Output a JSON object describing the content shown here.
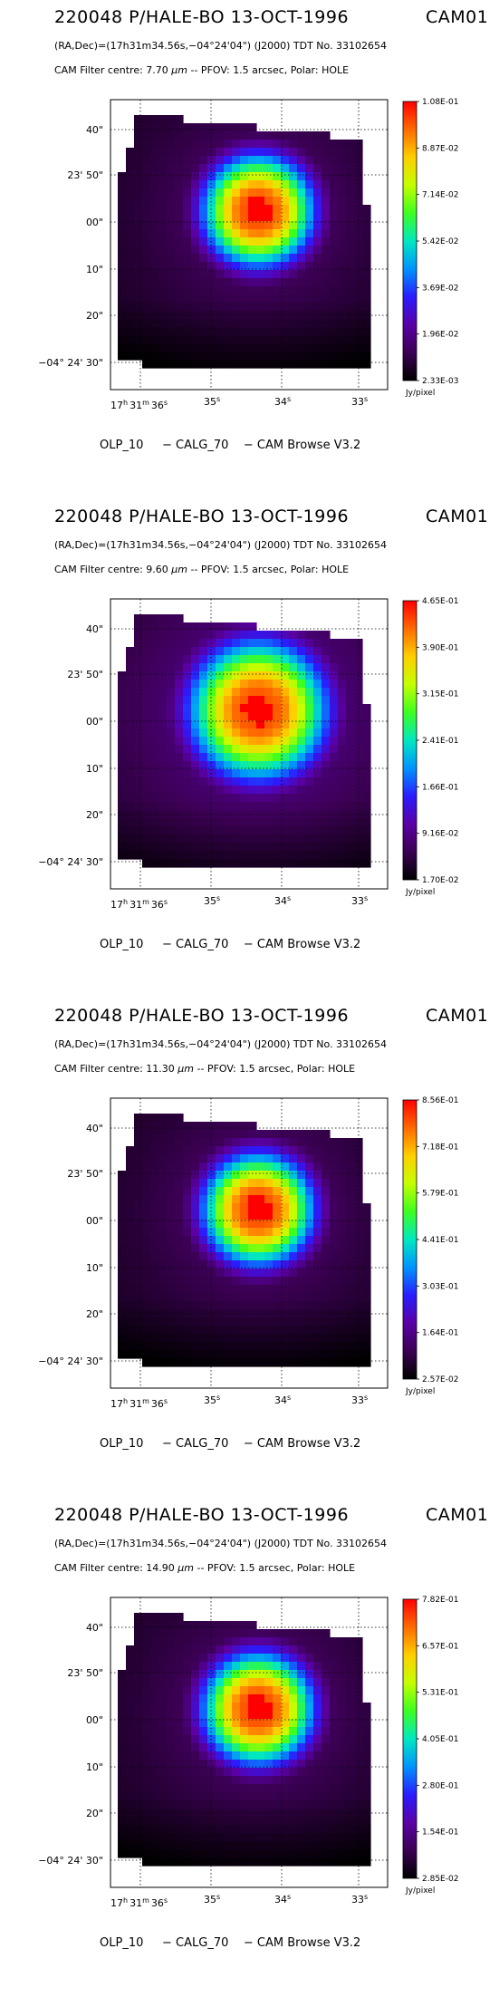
{
  "panels": [
    {
      "title": "220048 P/HALE-BO 13-OCT-1996",
      "cam_id": "CAM01",
      "coordinates": "(RA,Dec)=(17h31m34.56s,−04°24'04\") (J2000) TDT No. 33102654",
      "filter_prefix": "CAM  Filter  centre:  7.70",
      "filter_unit": "µm",
      "filter_suffix": " --    PFOV:  1.5 arcsec, Polar: HOLE",
      "colorbar_ticks": [
        "1.08E-01",
        "8.87E-02",
        "7.14E-02",
        "5.42E-02",
        "3.69E-02",
        "1.96E-02",
        "2.33E-03"
      ],
      "colorbar_unit": "Jy/pixel",
      "footer": "OLP_10     − CALG_70    − CAM Browse V3.2"
    },
    {
      "title": "220048 P/HALE-BO 13-OCT-1996",
      "cam_id": "CAM01",
      "coordinates": "(RA,Dec)=(17h31m34.56s,−04°24'04\") (J2000) TDT No. 33102654",
      "filter_prefix": "CAM  Filter  centre:  9.60",
      "filter_unit": "µm",
      "filter_suffix": " --    PFOV:  1.5 arcsec, Polar: HOLE",
      "colorbar_ticks": [
        "4.65E-01",
        "3.90E-01",
        "3.15E-01",
        "2.41E-01",
        "1.66E-01",
        "9.16E-02",
        "1.70E-02"
      ],
      "colorbar_unit": "Jy/pixel",
      "footer": "OLP_10     − CALG_70    − CAM Browse V3.2"
    },
    {
      "title": "220048 P/HALE-BO 13-OCT-1996",
      "cam_id": "CAM01",
      "coordinates": "(RA,Dec)=(17h31m34.56s,−04°24'04\") (J2000) TDT No. 33102654",
      "filter_prefix": "CAM  Filter  centre: 11.30",
      "filter_unit": "µm",
      "filter_suffix": " --    PFOV:  1.5 arcsec, Polar: HOLE",
      "colorbar_ticks": [
        "8.56E-01",
        "7.18E-01",
        "5.79E-01",
        "4.41E-01",
        "3.03E-01",
        "1.64E-01",
        "2.57E-02"
      ],
      "colorbar_unit": "Jy/pixel",
      "footer": "OLP_10     − CALG_70    − CAM Browse V3.2"
    },
    {
      "title": "220048 P/HALE-BO 13-OCT-1996",
      "cam_id": "CAM01",
      "coordinates": "(RA,Dec)=(17h31m34.56s,−04°24'04\") (J2000) TDT No. 33102654",
      "filter_prefix": "CAM  Filter  centre: 14.90",
      "filter_unit": "µm",
      "filter_suffix": " --    PFOV:  1.5 arcsec, Polar: HOLE",
      "colorbar_ticks": [
        "7.82E-01",
        "6.57E-01",
        "5.31E-01",
        "4.05E-01",
        "2.80E-01",
        "1.54E-01",
        "2.85E-02"
      ],
      "colorbar_unit": "Jy/pixel",
      "footer": "OLP_10     − CALG_70    − CAM Browse V3.2"
    }
  ],
  "axes": {
    "y_ticks": [
      "40\"",
      "23' 50\"",
      "00\"",
      "10\"",
      "20\"",
      "−04° 24' 30\""
    ],
    "x_ticks": [
      {
        "major": "17",
        "h": "h",
        "min": "31",
        "m": "m",
        "sec": "36",
        "s": "s"
      },
      {
        "sec": "35",
        "s": "s"
      },
      {
        "sec": "34",
        "s": "s"
      },
      {
        "sec": "33",
        "s": "s"
      }
    ]
  },
  "colors": {
    "colormap": [
      "#000000",
      "#3b0053",
      "#5a00a6",
      "#2a1cff",
      "#0094ff",
      "#00e8c0",
      "#3dff20",
      "#c4ff00",
      "#ffcf00",
      "#ff6a00",
      "#ff0000"
    ]
  }
}
